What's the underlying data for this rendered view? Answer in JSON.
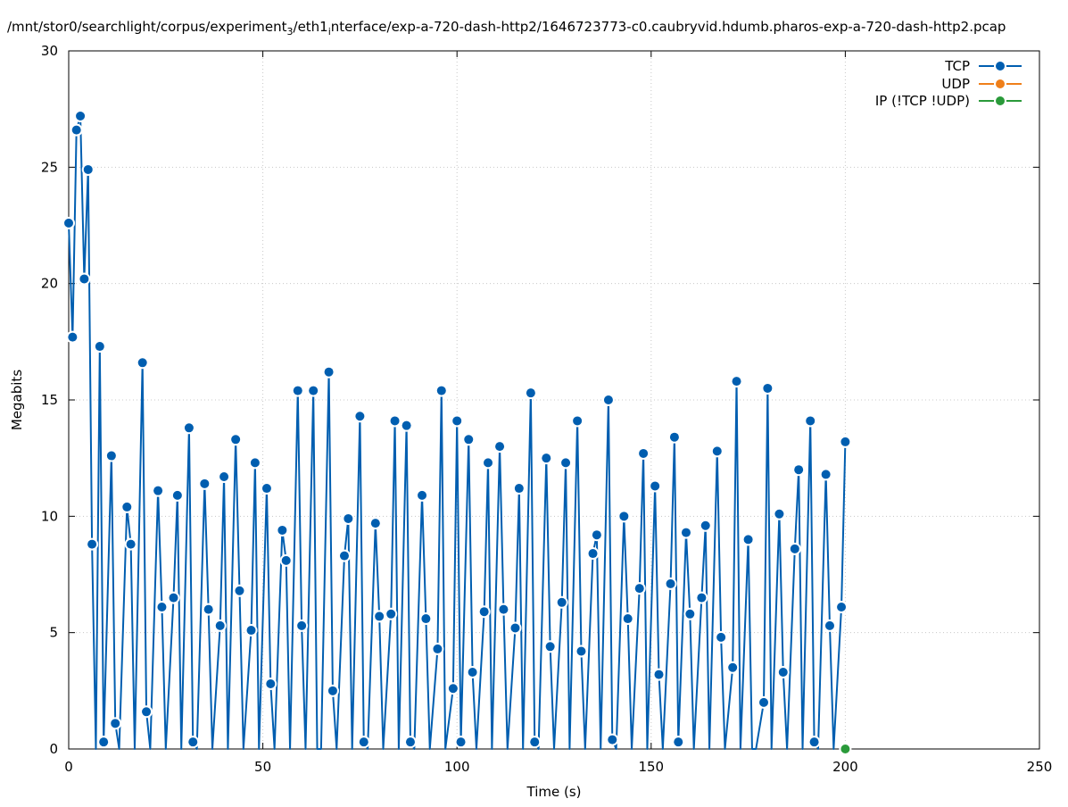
{
  "chart_data": {
    "type": "line",
    "title": "/mnt/stor0/searchlight/corpus/experiment_3/eth1_interface/exp-a-720-dash-http2/1646723773-c0.caubryvid.hdumb.pharos-exp-a-720-dash-http2.pcap",
    "xlabel": "Time (s)",
    "ylabel": "Megabits",
    "xlim": [
      0,
      250
    ],
    "ylim": [
      0,
      30
    ],
    "x_ticks": [
      "0",
      "50",
      "100",
      "150",
      "200",
      "250"
    ],
    "y_ticks": [
      "0",
      "5",
      "10",
      "15",
      "20",
      "25",
      "30"
    ],
    "grid": true,
    "legend_position": "top-right",
    "colors": {
      "TCP": "#005eb0",
      "UDP": "#ef7f1a",
      "IP": "#2a9a3a"
    },
    "series": [
      {
        "name": "TCP",
        "x": [
          0,
          1,
          2,
          3,
          4,
          5,
          6,
          7,
          8,
          9,
          11,
          12,
          13,
          15,
          16,
          17,
          19,
          20,
          21,
          23,
          24,
          25,
          27,
          28,
          29,
          31,
          32,
          33,
          35,
          36,
          37,
          39,
          40,
          41,
          43,
          44,
          45,
          47,
          48,
          49,
          51,
          52,
          53,
          55,
          56,
          57,
          59,
          60,
          61,
          63,
          64,
          65,
          67,
          68,
          69,
          71,
          72,
          73,
          75,
          76,
          77,
          79,
          80,
          81,
          83,
          84,
          85,
          87,
          88,
          89,
          91,
          92,
          93,
          95,
          96,
          97,
          99,
          100,
          101,
          103,
          104,
          105,
          107,
          108,
          109,
          111,
          112,
          113,
          115,
          116,
          117,
          119,
          120,
          121,
          123,
          124,
          125,
          127,
          128,
          129,
          131,
          132,
          133,
          135,
          136,
          137,
          139,
          140,
          141,
          143,
          144,
          145,
          147,
          148,
          149,
          151,
          152,
          153,
          155,
          156,
          157,
          159,
          160,
          161,
          163,
          164,
          165,
          167,
          168,
          169,
          171,
          172,
          173,
          175,
          176,
          177,
          179,
          180,
          181,
          183,
          184,
          185,
          187,
          188,
          189,
          191,
          192,
          193,
          195,
          196,
          197,
          199,
          200
        ],
        "values": [
          22.6,
          17.7,
          26.6,
          27.2,
          20.2,
          24.9,
          8.8,
          0,
          17.3,
          0.3,
          12.6,
          1.1,
          0,
          10.4,
          8.8,
          0,
          16.6,
          1.6,
          0,
          11.1,
          6.1,
          0,
          6.5,
          10.9,
          0,
          13.8,
          0.3,
          0,
          11.4,
          6.0,
          0,
          5.3,
          11.7,
          0,
          13.3,
          6.8,
          0,
          5.1,
          12.3,
          0,
          11.2,
          2.8,
          0,
          9.4,
          8.1,
          0,
          15.4,
          5.3,
          0,
          15.4,
          0,
          0,
          16.2,
          2.5,
          0,
          8.3,
          9.9,
          0,
          14.3,
          0.3,
          0,
          9.7,
          5.7,
          0,
          5.8,
          14.1,
          0,
          13.9,
          0.3,
          0,
          10.9,
          5.6,
          0,
          4.3,
          15.4,
          0,
          2.6,
          14.1,
          0.3,
          13.3,
          3.3,
          0,
          5.9,
          12.3,
          0,
          13.0,
          6.0,
          0,
          5.2,
          11.2,
          0,
          15.3,
          0.3,
          0,
          12.5,
          4.4,
          0,
          6.3,
          12.3,
          0,
          14.1,
          4.2,
          0,
          8.4,
          9.2,
          0,
          15.0,
          0.4,
          0,
          10.0,
          5.6,
          0,
          6.9,
          12.7,
          0,
          11.3,
          3.2,
          0,
          7.1,
          13.4,
          0.3,
          9.3,
          5.8,
          0,
          6.5,
          9.6,
          0,
          12.8,
          4.8,
          0,
          3.5,
          15.8,
          0,
          9.0,
          0,
          0,
          2.0,
          15.5,
          0,
          10.1,
          3.3,
          0,
          8.6,
          12.0,
          0,
          14.1,
          0.3,
          0,
          11.8,
          5.3,
          0,
          6.1,
          13.2
        ]
      },
      {
        "name": "UDP",
        "x": [],
        "values": []
      },
      {
        "name": "IP (!TCP  !UDP)",
        "x": [
          200
        ],
        "values": [
          0
        ]
      }
    ]
  }
}
